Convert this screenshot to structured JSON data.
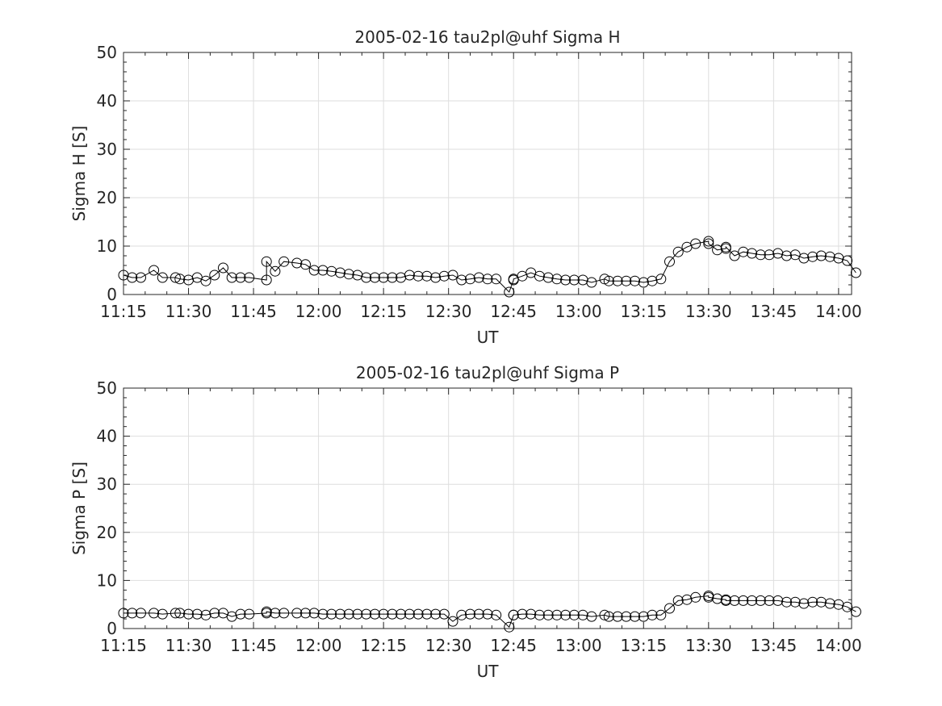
{
  "chart_data": [
    {
      "type": "line",
      "title": "2005-02-16  tau2pl@uhf Sigma H",
      "xlabel": "UT",
      "ylabel": "Sigma H [S]",
      "xticks": [
        "11:15",
        "11:30",
        "11:45",
        "12:00",
        "12:15",
        "12:30",
        "12:45",
        "13:00",
        "13:15",
        "13:30",
        "13:45",
        "14:00"
      ],
      "yticks": [
        "0",
        "10",
        "20",
        "30",
        "40",
        "50"
      ],
      "xlim": [
        "11:15",
        "14:03"
      ],
      "ylim": [
        0,
        50
      ],
      "grid": true,
      "marker": "open-circle",
      "color": "#000000",
      "x": [
        "11:15:00",
        "11:17:00",
        "11:19:00",
        "11:22:00",
        "11:24:00",
        "11:27:00",
        "11:28:00",
        "11:30:00",
        "11:32:00",
        "11:34:00",
        "11:36:00",
        "11:38:00",
        "11:40:00",
        "11:42:00",
        "11:44:00",
        "11:48:00",
        "11:48:00",
        "11:50:00",
        "11:52:00",
        "11:55:00",
        "11:57:00",
        "11:59:00",
        "12:01:00",
        "12:03:00",
        "12:05:00",
        "12:07:00",
        "12:09:00",
        "12:11:00",
        "12:13:00",
        "12:15:00",
        "12:17:00",
        "12:19:00",
        "12:21:00",
        "12:23:00",
        "12:25:00",
        "12:27:00",
        "12:29:00",
        "12:31:00",
        "12:33:00",
        "12:35:00",
        "12:37:00",
        "12:39:00",
        "12:41:00",
        "12:44:00",
        "12:45:00",
        "12:45:00",
        "12:47:00",
        "12:49:00",
        "12:51:00",
        "12:53:00",
        "12:55:00",
        "12:57:00",
        "12:59:00",
        "13:01:00",
        "13:03:00",
        "13:06:00",
        "13:07:00",
        "13:09:00",
        "13:11:00",
        "13:13:00",
        "13:15:00",
        "13:17:00",
        "13:19:00",
        "13:21:00",
        "13:23:00",
        "13:25:00",
        "13:27:00",
        "13:30:00",
        "13:30:00",
        "13:32:00",
        "13:34:00",
        "13:34:00",
        "13:36:00",
        "13:38:00",
        "13:40:00",
        "13:42:00",
        "13:44:00",
        "13:46:00",
        "13:48:00",
        "13:50:00",
        "13:52:00",
        "13:54:00",
        "13:56:00",
        "13:58:00",
        "14:00:00",
        "14:02:00",
        "14:04:00"
      ],
      "y": [
        4.0,
        3.5,
        3.5,
        5.0,
        3.5,
        3.5,
        3.2,
        3.0,
        3.5,
        2.8,
        4.0,
        5.5,
        3.5,
        3.5,
        3.5,
        3.0,
        6.8,
        4.8,
        6.8,
        6.5,
        6.2,
        5.0,
        5.0,
        4.8,
        4.5,
        4.2,
        4.0,
        3.5,
        3.5,
        3.5,
        3.5,
        3.5,
        4.0,
        3.8,
        3.8,
        3.5,
        3.8,
        4.0,
        3.0,
        3.2,
        3.5,
        3.2,
        3.2,
        0.5,
        3.0,
        3.2,
        3.8,
        4.5,
        3.8,
        3.5,
        3.2,
        3.0,
        3.0,
        3.0,
        2.5,
        3.2,
        2.8,
        2.8,
        2.8,
        2.8,
        2.5,
        2.8,
        3.2,
        6.8,
        8.8,
        9.8,
        10.5,
        11.0,
        10.5,
        9.2,
        9.5,
        9.8,
        8.0,
        8.8,
        8.5,
        8.2,
        8.2,
        8.5,
        8.0,
        8.2,
        7.5,
        7.8,
        8.0,
        7.8,
        7.5,
        7.0,
        4.5
      ]
    },
    {
      "type": "line",
      "title": "2005-02-16  tau2pl@uhf Sigma P",
      "xlabel": "UT",
      "ylabel": "Sigma P [S]",
      "xticks": [
        "11:15",
        "11:30",
        "11:45",
        "12:00",
        "12:15",
        "12:30",
        "12:45",
        "13:00",
        "13:15",
        "13:30",
        "13:45",
        "14:00"
      ],
      "yticks": [
        "0",
        "10",
        "20",
        "30",
        "40",
        "50"
      ],
      "xlim": [
        "11:15",
        "14:03"
      ],
      "ylim": [
        0,
        50
      ],
      "grid": true,
      "marker": "open-circle",
      "color": "#000000",
      "x": [
        "11:15:00",
        "11:17:00",
        "11:19:00",
        "11:22:00",
        "11:24:00",
        "11:27:00",
        "11:28:00",
        "11:30:00",
        "11:32:00",
        "11:34:00",
        "11:36:00",
        "11:38:00",
        "11:40:00",
        "11:42:00",
        "11:44:00",
        "11:48:00",
        "11:48:00",
        "11:50:00",
        "11:52:00",
        "11:55:00",
        "11:57:00",
        "11:59:00",
        "12:01:00",
        "12:03:00",
        "12:05:00",
        "12:07:00",
        "12:09:00",
        "12:11:00",
        "12:13:00",
        "12:15:00",
        "12:17:00",
        "12:19:00",
        "12:21:00",
        "12:23:00",
        "12:25:00",
        "12:27:00",
        "12:29:00",
        "12:31:00",
        "12:33:00",
        "12:35:00",
        "12:37:00",
        "12:39:00",
        "12:41:00",
        "12:44:00",
        "12:45:00",
        "12:45:00",
        "12:47:00",
        "12:49:00",
        "12:51:00",
        "12:53:00",
        "12:55:00",
        "12:57:00",
        "12:59:00",
        "13:01:00",
        "13:03:00",
        "13:06:00",
        "13:07:00",
        "13:09:00",
        "13:11:00",
        "13:13:00",
        "13:15:00",
        "13:17:00",
        "13:19:00",
        "13:21:00",
        "13:23:00",
        "13:25:00",
        "13:27:00",
        "13:30:00",
        "13:30:00",
        "13:32:00",
        "13:34:00",
        "13:34:00",
        "13:36:00",
        "13:38:00",
        "13:40:00",
        "13:42:00",
        "13:44:00",
        "13:46:00",
        "13:48:00",
        "13:50:00",
        "13:52:00",
        "13:54:00",
        "13:56:00",
        "13:58:00",
        "14:00:00",
        "14:02:00",
        "14:04:00"
      ],
      "y": [
        3.2,
        3.2,
        3.2,
        3.2,
        3.0,
        3.2,
        3.2,
        3.0,
        3.0,
        2.8,
        3.2,
        3.2,
        2.5,
        3.0,
        3.0,
        3.2,
        3.5,
        3.2,
        3.2,
        3.2,
        3.2,
        3.2,
        3.0,
        3.0,
        3.0,
        3.0,
        3.0,
        3.0,
        3.0,
        3.0,
        3.0,
        3.0,
        3.0,
        3.0,
        3.0,
        3.0,
        3.0,
        1.5,
        2.8,
        3.0,
        3.0,
        3.0,
        2.8,
        0.3,
        2.8,
        2.8,
        3.0,
        3.0,
        2.8,
        2.8,
        2.8,
        2.8,
        2.8,
        2.8,
        2.5,
        2.8,
        2.5,
        2.5,
        2.5,
        2.5,
        2.5,
        2.8,
        2.8,
        4.2,
        5.8,
        6.0,
        6.5,
        6.8,
        6.5,
        6.2,
        6.0,
        5.8,
        5.8,
        5.8,
        5.8,
        5.8,
        5.8,
        5.8,
        5.5,
        5.5,
        5.2,
        5.5,
        5.5,
        5.2,
        5.0,
        4.5,
        3.5
      ]
    }
  ]
}
